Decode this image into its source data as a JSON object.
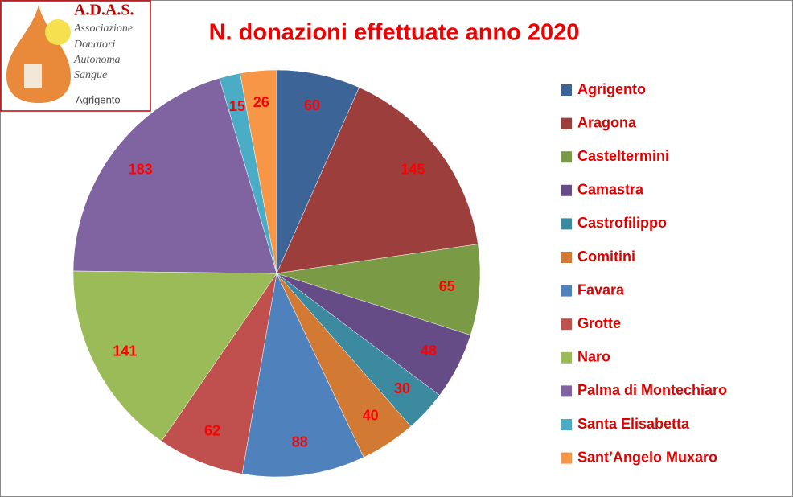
{
  "logo": {
    "name": "A.D.A.S.",
    "lines": [
      "Associazione",
      "Donatori",
      "Autonoma",
      "Sangue"
    ],
    "city": "Agrigento"
  },
  "chart_data": {
    "type": "pie",
    "title": "N. donazioni effettuate anno 2020",
    "categories": [
      "Agrigento",
      "Aragona",
      "Casteltermini",
      "Camastra",
      "Castrofilippo",
      "Comitini",
      "Favara",
      "Grotte",
      "Naro",
      "Palma di Montechiaro",
      "Santa Elisabetta",
      "Sant’Angelo Muxaro"
    ],
    "values": [
      60,
      145,
      65,
      48,
      30,
      40,
      88,
      62,
      141,
      183,
      15,
      26
    ],
    "colors": [
      "#3d6497",
      "#9c3f3c",
      "#7b9a45",
      "#654c87",
      "#3b8aa0",
      "#d27a34",
      "#4f81bd",
      "#c0504d",
      "#9bbb59",
      "#8064a2",
      "#4bacc6",
      "#f79646"
    ],
    "legend": "right"
  }
}
